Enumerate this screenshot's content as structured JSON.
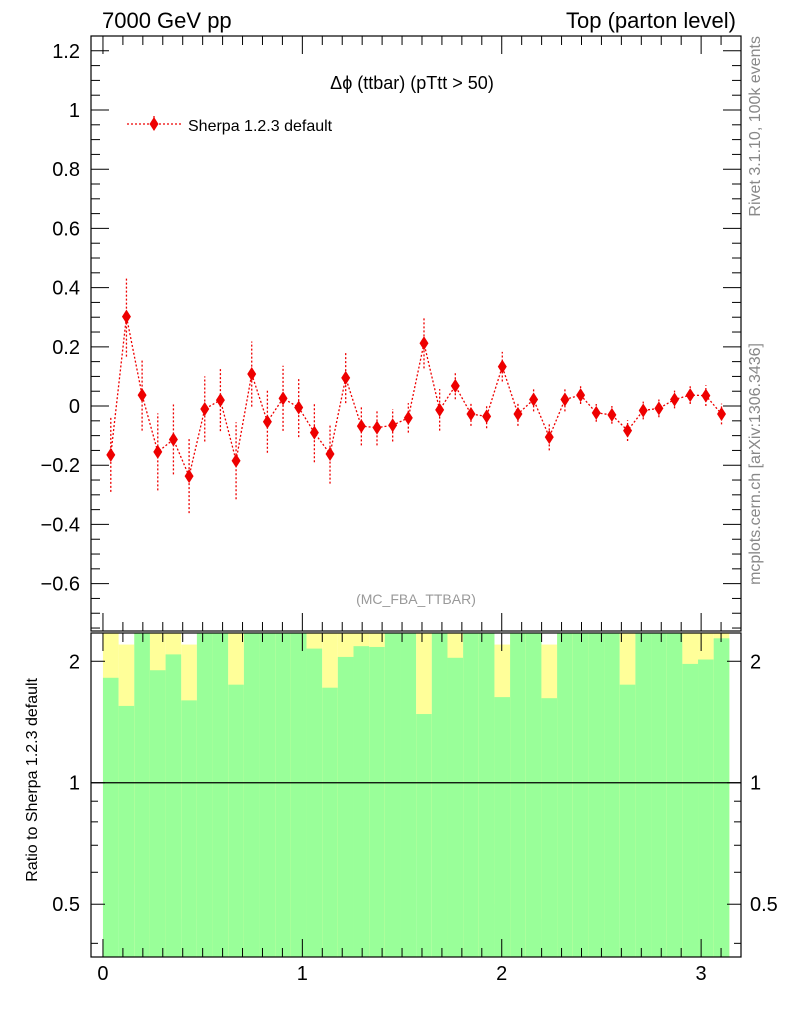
{
  "header": {
    "left": "7000 GeV pp",
    "right": "Top (parton level)"
  },
  "side_labels": {
    "rivet": "Rivet 3.1.10,  100k events",
    "mcplots": "mcplots.cern.ch [arXiv:1306.3436]"
  },
  "chart_data": [
    {
      "type": "scatter",
      "title": "Δϕ (ttbar) (pTtt > 50)",
      "analysis_tag": "(MC_FBA_TTBAR)",
      "legend": {
        "label": "Sherpa 1.2.3 default",
        "placement": "top-left"
      },
      "xlim": [
        -0.06,
        3.2
      ],
      "ylim": [
        -0.76,
        1.25
      ],
      "yticks": [
        -0.6,
        -0.4,
        -0.2,
        0,
        0.2,
        0.4,
        0.6,
        0.8,
        1,
        1.2
      ],
      "ytick_labels": [
        "−0.6",
        "−0.4",
        "−0.2",
        "0",
        "0.2",
        "0.4",
        "0.6",
        "0.8",
        "1",
        "1.2"
      ],
      "series": [
        {
          "name": "Sherpa 1.2.3 default",
          "color": "#ee0000",
          "line_style": "dotted",
          "marker": "diamond",
          "x": [
            0.0393,
            0.1178,
            0.1963,
            0.2749,
            0.3534,
            0.432,
            0.5105,
            0.589,
            0.6676,
            0.7461,
            0.8247,
            0.9032,
            0.9817,
            1.0603,
            1.1388,
            1.2174,
            1.2959,
            1.3744,
            1.453,
            1.5315,
            1.6101,
            1.6886,
            1.7671,
            1.8457,
            1.9242,
            2.0028,
            2.0813,
            2.1598,
            2.2384,
            2.3169,
            2.3955,
            2.474,
            2.5525,
            2.6311,
            2.7096,
            2.7882,
            2.8667,
            2.9452,
            3.0238,
            3.1023
          ],
          "y": [
            -0.165,
            0.302,
            0.037,
            -0.155,
            -0.113,
            -0.237,
            -0.01,
            0.02,
            -0.185,
            0.108,
            -0.053,
            0.026,
            -0.005,
            -0.09,
            -0.162,
            0.095,
            -0.068,
            -0.073,
            -0.065,
            -0.04,
            0.212,
            -0.013,
            0.068,
            -0.027,
            -0.035,
            0.133,
            -0.027,
            0.022,
            -0.105,
            0.022,
            0.037,
            -0.023,
            -0.03,
            -0.083,
            -0.015,
            -0.008,
            0.022,
            0.037,
            0.035,
            -0.027
          ],
          "yerr": [
            0.125,
            0.135,
            0.12,
            0.13,
            0.118,
            0.125,
            0.11,
            0.105,
            0.13,
            0.11,
            0.105,
            0.11,
            0.1,
            0.1,
            0.1,
            0.085,
            0.065,
            0.06,
            0.055,
            0.05,
            0.085,
            0.07,
            0.045,
            0.04,
            0.04,
            0.05,
            0.04,
            0.04,
            0.045,
            0.04,
            0.03,
            0.03,
            0.03,
            0.035,
            0.03,
            0.03,
            0.03,
            0.03,
            0.035,
            0.035
          ]
        }
      ]
    },
    {
      "type": "bar",
      "ylabel": "Ratio to Sherpa 1.2.3 default",
      "ylim": [
        0.37,
        2.35
      ],
      "yscale": "log",
      "yticks": [
        0.5,
        1,
        2
      ],
      "ytick_labels": [
        "0.5",
        "1",
        "2"
      ],
      "xlim": [
        -0.06,
        3.2
      ],
      "xticks": [
        0,
        1,
        2,
        3
      ],
      "xtick_labels": [
        "0",
        "1",
        "2",
        "3"
      ],
      "reference_line": 1,
      "bin_edges": [
        0,
        0.0785,
        0.1571,
        0.2356,
        0.3142,
        0.3927,
        0.4712,
        0.5498,
        0.6283,
        0.7069,
        0.7854,
        0.8639,
        0.9425,
        1.021,
        1.0996,
        1.1781,
        1.2566,
        1.3352,
        1.4137,
        1.4923,
        1.5708,
        1.6493,
        1.7279,
        1.8064,
        1.885,
        1.9635,
        2.042,
        2.1206,
        2.1991,
        2.2777,
        2.3562,
        2.4347,
        2.5133,
        2.5918,
        2.6704,
        2.7489,
        2.8274,
        2.906,
        2.9845,
        3.0631,
        3.1416
      ],
      "band_outer": {
        "color": "#ffff99",
        "lo": [
          0.35,
          0.56,
          0.35,
          0.35,
          0.35,
          0.46,
          0.35,
          0.35,
          0.35,
          0.35,
          0.35,
          0.35,
          0.35,
          0.35,
          0.35,
          0.35,
          0.35,
          0.35,
          0.35,
          0.35,
          0.66,
          0.35,
          0.35,
          0.35,
          0.35,
          0.5,
          0.35,
          0.35,
          0.46,
          0.35,
          0.35,
          0.35,
          0.35,
          0.51,
          0.35,
          0.35,
          0.35,
          0.35,
          0.35,
          0.35
        ],
        "hi": [
          2.4,
          2.2,
          2.4,
          2.4,
          2.4,
          2.2,
          2.4,
          2.4,
          2.4,
          2.4,
          2.4,
          2.4,
          2.4,
          2.4,
          2.4,
          2.4,
          2.4,
          2.4,
          2.4,
          2.4,
          2.4,
          2.4,
          2.4,
          2.4,
          2.4,
          2.2,
          2.4,
          2.4,
          2.2,
          2.4,
          2.4,
          2.4,
          2.4,
          2.4,
          2.4,
          2.4,
          2.4,
          2.4,
          2.4,
          2.4
        ]
      },
      "band_inner": {
        "color": "#99ff99",
        "lo": [
          0.35,
          0.35,
          0.35,
          0.35,
          0.35,
          0.35,
          0.35,
          0.35,
          0.35,
          0.35,
          0.35,
          0.35,
          0.35,
          0.35,
          0.35,
          0.35,
          0.35,
          0.35,
          0.35,
          0.35,
          0.35,
          0.35,
          0.35,
          0.35,
          0.35,
          0.35,
          0.35,
          0.35,
          0.35,
          0.35,
          0.35,
          0.35,
          0.35,
          0.35,
          0.35,
          0.35,
          0.35,
          0.35,
          0.35,
          0.35
        ],
        "hi": [
          1.82,
          1.55,
          2.4,
          1.9,
          2.08,
          1.6,
          2.4,
          2.4,
          1.75,
          2.4,
          2.4,
          2.4,
          2.4,
          2.15,
          1.72,
          2.05,
          2.18,
          2.17,
          2.4,
          2.4,
          1.48,
          2.4,
          2.04,
          2.4,
          2.4,
          1.63,
          2.4,
          2.4,
          1.62,
          2.4,
          2.38,
          2.38,
          2.4,
          1.75,
          2.4,
          2.4,
          2.4,
          1.97,
          2.02,
          2.28
        ]
      }
    }
  ]
}
